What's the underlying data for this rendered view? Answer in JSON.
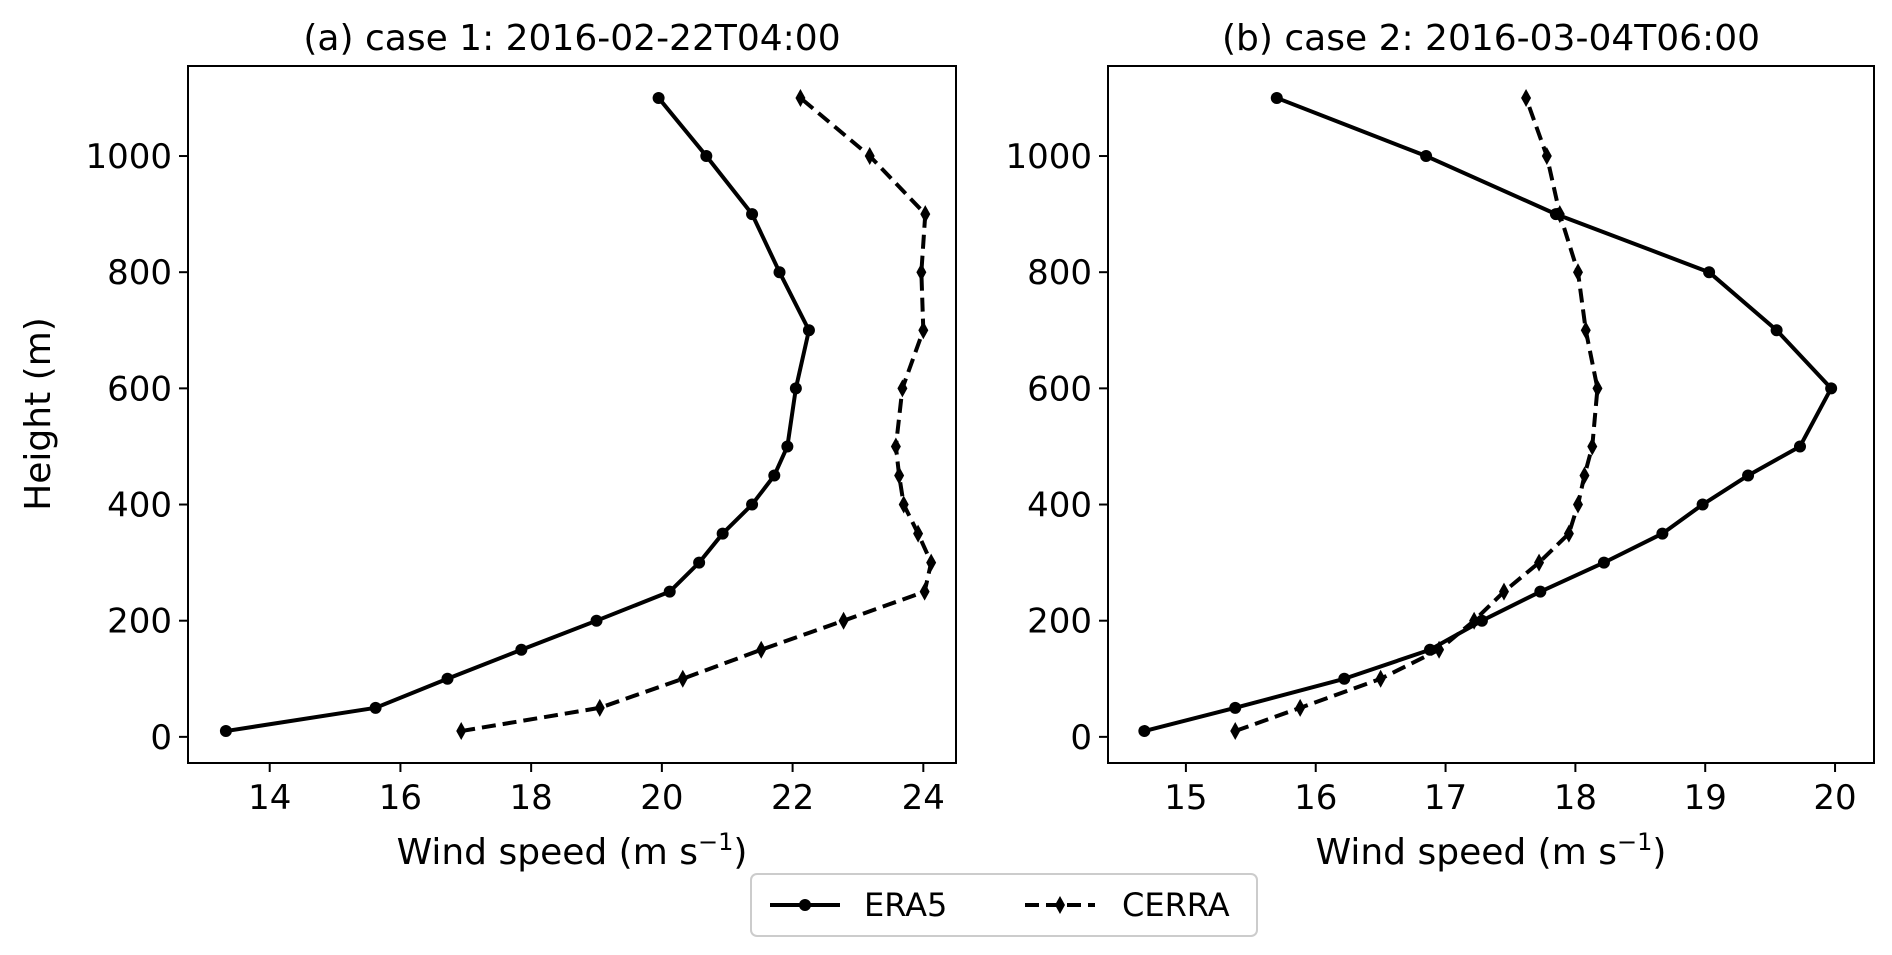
{
  "chart_data": [
    {
      "type": "line",
      "title": "(a) case 1: 2016-02-22T04:00",
      "xlabel": "Wind speed (m s",
      "xlabel_sup": "−1",
      "xlabel_end": ")",
      "ylabel": "Height (m)",
      "xlim": [
        12.75,
        24.5
      ],
      "ylim": [
        -45,
        1155
      ],
      "xticks": [
        14,
        16,
        18,
        20,
        22,
        24
      ],
      "yticks": [
        0,
        200,
        400,
        600,
        800,
        1000
      ],
      "series": [
        {
          "name": "ERA5",
          "style": "solid-circle",
          "points": [
            [
              13.33,
              10
            ],
            [
              15.62,
              50
            ],
            [
              16.72,
              100
            ],
            [
              17.85,
              150
            ],
            [
              19.0,
              200
            ],
            [
              20.12,
              250
            ],
            [
              20.57,
              300
            ],
            [
              20.93,
              350
            ],
            [
              21.38,
              400
            ],
            [
              21.72,
              450
            ],
            [
              21.92,
              500
            ],
            [
              22.05,
              600
            ],
            [
              22.25,
              700
            ],
            [
              21.8,
              800
            ],
            [
              21.38,
              900
            ],
            [
              20.68,
              1000
            ],
            [
              19.95,
              1100
            ]
          ]
        },
        {
          "name": "CERRA",
          "style": "dashed-diamond",
          "points": [
            [
              16.93,
              10
            ],
            [
              19.05,
              50
            ],
            [
              20.32,
              100
            ],
            [
              21.52,
              150
            ],
            [
              22.78,
              200
            ],
            [
              24.02,
              250
            ],
            [
              24.12,
              300
            ],
            [
              23.92,
              350
            ],
            [
              23.7,
              400
            ],
            [
              23.63,
              450
            ],
            [
              23.58,
              500
            ],
            [
              23.68,
              600
            ],
            [
              24.0,
              700
            ],
            [
              23.97,
              800
            ],
            [
              24.03,
              900
            ],
            [
              23.18,
              1000
            ],
            [
              22.12,
              1100
            ]
          ]
        }
      ]
    },
    {
      "type": "line",
      "title": "(b) case 2: 2016-03-04T06:00",
      "xlabel": "Wind speed (m s",
      "xlabel_sup": "−1",
      "xlabel_end": ")",
      "ylabel": "",
      "xlim": [
        14.4,
        20.3
      ],
      "ylim": [
        -45,
        1155
      ],
      "xticks": [
        15,
        16,
        17,
        18,
        19,
        20
      ],
      "yticks": [
        0,
        200,
        400,
        600,
        800,
        1000
      ],
      "series": [
        {
          "name": "ERA5",
          "style": "solid-circle",
          "points": [
            [
              14.68,
              10
            ],
            [
              15.38,
              50
            ],
            [
              16.22,
              100
            ],
            [
              16.88,
              150
            ],
            [
              17.28,
              200
            ],
            [
              17.73,
              250
            ],
            [
              18.22,
              300
            ],
            [
              18.67,
              350
            ],
            [
              18.98,
              400
            ],
            [
              19.33,
              450
            ],
            [
              19.73,
              500
            ],
            [
              19.97,
              600
            ],
            [
              19.55,
              700
            ],
            [
              19.03,
              800
            ],
            [
              17.85,
              900
            ],
            [
              16.85,
              1000
            ],
            [
              15.7,
              1100
            ]
          ]
        },
        {
          "name": "CERRA",
          "style": "dashed-diamond",
          "points": [
            [
              15.38,
              10
            ],
            [
              15.88,
              50
            ],
            [
              16.5,
              100
            ],
            [
              16.95,
              150
            ],
            [
              17.22,
              200
            ],
            [
              17.45,
              250
            ],
            [
              17.72,
              300
            ],
            [
              17.95,
              350
            ],
            [
              18.02,
              400
            ],
            [
              18.07,
              450
            ],
            [
              18.13,
              500
            ],
            [
              18.17,
              600
            ],
            [
              18.08,
              700
            ],
            [
              18.02,
              800
            ],
            [
              17.88,
              900
            ],
            [
              17.78,
              1000
            ],
            [
              17.62,
              1100
            ]
          ]
        }
      ]
    }
  ],
  "legend": {
    "placement": "bottom-center",
    "items": [
      {
        "label": "ERA5",
        "style": "solid-circle"
      },
      {
        "label": "CERRA",
        "style": "dashed-diamond"
      }
    ]
  },
  "colors": {
    "line": "#000000",
    "background": "#ffffff"
  }
}
